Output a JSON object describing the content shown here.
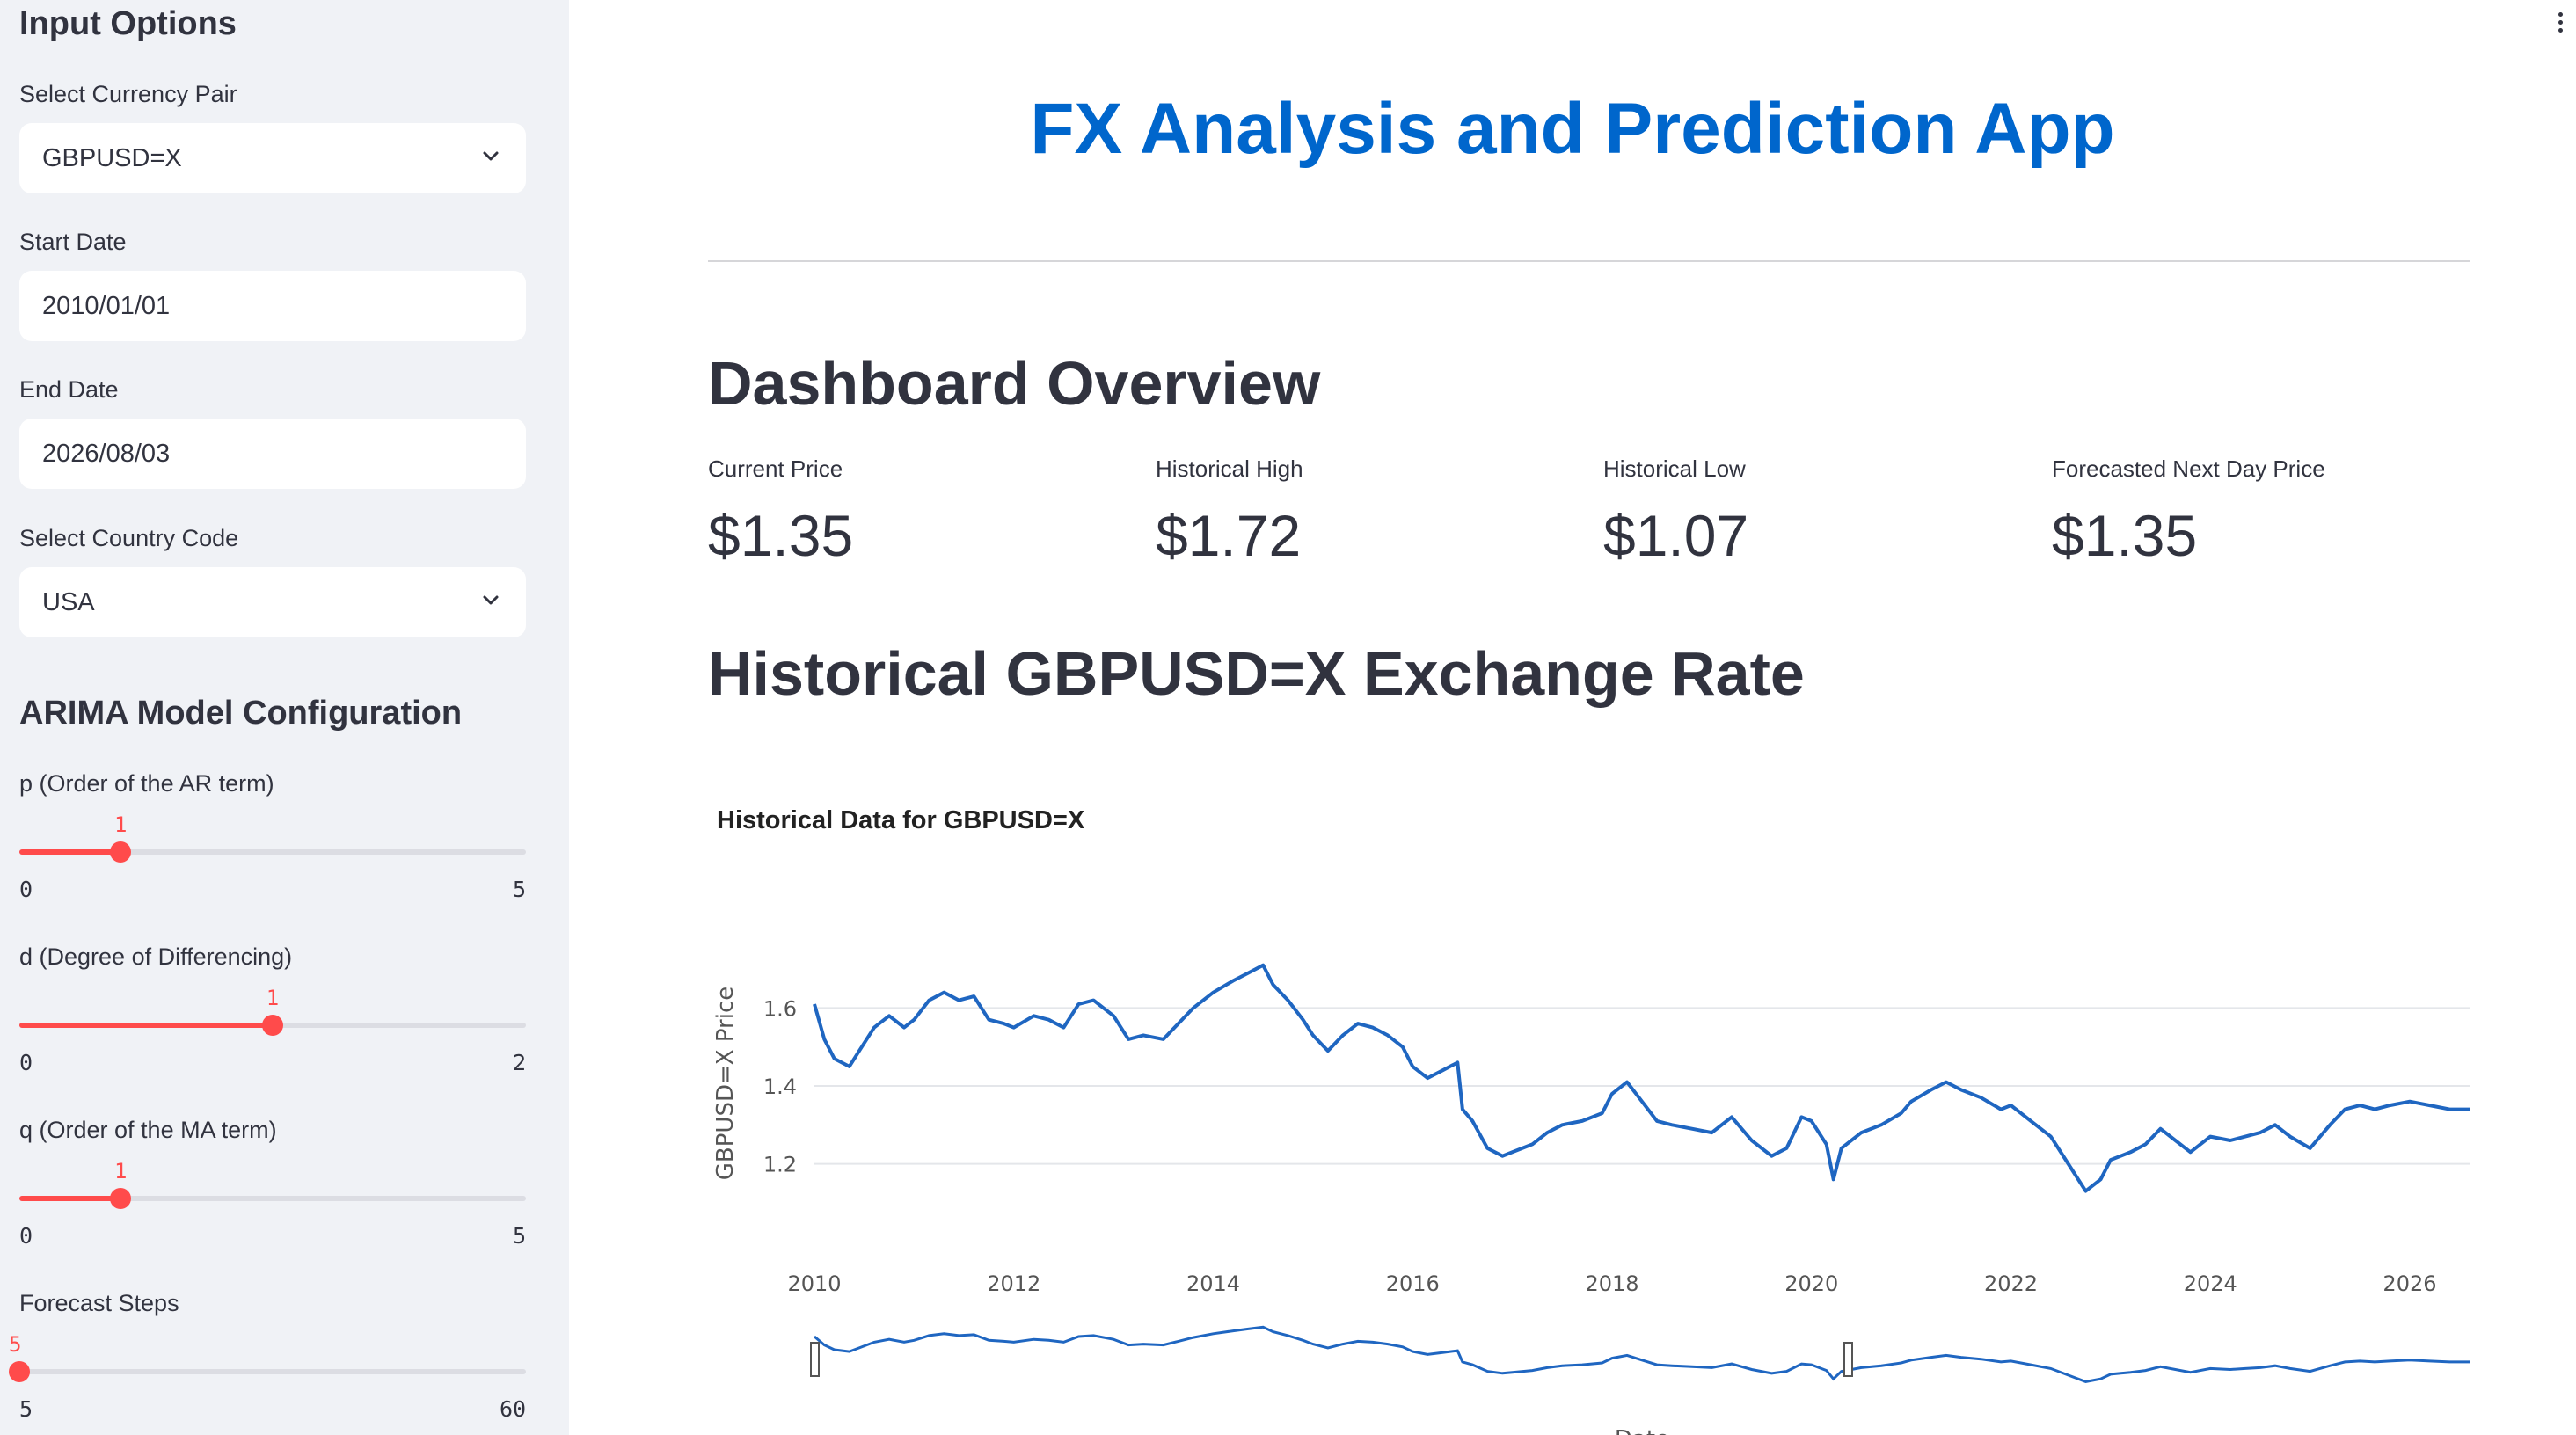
{
  "sidebar": {
    "heading": "Input Options",
    "currency": {
      "label": "Select Currency Pair",
      "value": "GBPUSD=X"
    },
    "start_date": {
      "label": "Start Date",
      "value": "2010/01/01"
    },
    "end_date": {
      "label": "End Date",
      "value": "2026/08/03"
    },
    "country": {
      "label": "Select Country Code",
      "value": "USA"
    },
    "arima_heading": "ARIMA Model Configuration",
    "sliders": [
      {
        "label": "p (Order of the AR term)",
        "value": "1",
        "min": "0",
        "max": "5",
        "fraction": 0.2
      },
      {
        "label": "d (Degree of Differencing)",
        "value": "1",
        "min": "0",
        "max": "2",
        "fraction": 0.5
      },
      {
        "label": "q (Order of the MA term)",
        "value": "1",
        "min": "0",
        "max": "5",
        "fraction": 0.2
      },
      {
        "label": "Forecast Steps",
        "value": "5",
        "min": "5",
        "max": "60",
        "fraction": 0.0
      }
    ]
  },
  "main": {
    "title": "FX Analysis and Prediction App",
    "overview_heading": "Dashboard Overview",
    "metrics": [
      {
        "label": "Current Price",
        "value": "$1.35"
      },
      {
        "label": "Historical High",
        "value": "$1.72"
      },
      {
        "label": "Historical Low",
        "value": "$1.07"
      },
      {
        "label": "Forecasted Next Day Price",
        "value": "$1.35"
      }
    ],
    "history_heading": "Historical GBPUSD=X Exchange Rate"
  },
  "chart_data": {
    "type": "line",
    "title": "Historical Data for GBPUSD=X",
    "xlabel": "Date",
    "ylabel": "GBPUSD=X Price",
    "x_ticks": [
      "2010",
      "2012",
      "2014",
      "2016",
      "2018",
      "2020",
      "2022",
      "2024",
      "2026"
    ],
    "y_ticks": [
      "1.2",
      "1.4",
      "1.6"
    ],
    "xlim": [
      2010.0,
      2026.6
    ],
    "ylim": [
      1.05,
      1.75
    ],
    "grid": true,
    "line_color": "#1f66c1",
    "range_slider": true,
    "series": [
      {
        "x": [
          2010.0,
          2010.1,
          2010.2,
          2010.35,
          2010.45,
          2010.6,
          2010.75,
          2010.9,
          2011.0,
          2011.15,
          2011.3,
          2011.45,
          2011.6,
          2011.75,
          2011.9,
          2012.0,
          2012.2,
          2012.35,
          2012.5,
          2012.65,
          2012.8,
          2013.0,
          2013.15,
          2013.3,
          2013.5,
          2013.65,
          2013.8,
          2014.0,
          2014.2,
          2014.35,
          2014.5,
          2014.6,
          2014.75,
          2014.9,
          2015.0,
          2015.15,
          2015.3,
          2015.45,
          2015.6,
          2015.75,
          2015.9,
          2016.0,
          2016.15,
          2016.3,
          2016.45,
          2016.5,
          2016.6,
          2016.75,
          2016.9,
          2017.0,
          2017.2,
          2017.35,
          2017.5,
          2017.7,
          2017.9,
          2018.0,
          2018.15,
          2018.3,
          2018.45,
          2018.6,
          2018.8,
          2019.0,
          2019.2,
          2019.4,
          2019.6,
          2019.75,
          2019.9,
          2020.0,
          2020.15,
          2020.22,
          2020.3,
          2020.5,
          2020.7,
          2020.9,
          2021.0,
          2021.2,
          2021.35,
          2021.5,
          2021.7,
          2021.9,
          2022.0,
          2022.2,
          2022.4,
          2022.6,
          2022.75,
          2022.9,
          2023.0,
          2023.2,
          2023.35,
          2023.5,
          2023.65,
          2023.8,
          2024.0,
          2024.2,
          2024.35,
          2024.5,
          2024.65,
          2024.8,
          2025.0,
          2025.2,
          2025.35,
          2025.5,
          2025.65,
          2025.8,
          2026.0,
          2026.2,
          2026.4,
          2026.6
        ],
        "y": [
          1.61,
          1.52,
          1.47,
          1.45,
          1.49,
          1.55,
          1.58,
          1.55,
          1.57,
          1.62,
          1.64,
          1.62,
          1.63,
          1.57,
          1.56,
          1.55,
          1.58,
          1.57,
          1.55,
          1.61,
          1.62,
          1.58,
          1.52,
          1.53,
          1.52,
          1.56,
          1.6,
          1.64,
          1.67,
          1.69,
          1.71,
          1.66,
          1.62,
          1.57,
          1.53,
          1.49,
          1.53,
          1.56,
          1.55,
          1.53,
          1.5,
          1.45,
          1.42,
          1.44,
          1.46,
          1.34,
          1.31,
          1.24,
          1.22,
          1.23,
          1.25,
          1.28,
          1.3,
          1.31,
          1.33,
          1.38,
          1.41,
          1.36,
          1.31,
          1.3,
          1.29,
          1.28,
          1.32,
          1.26,
          1.22,
          1.24,
          1.32,
          1.31,
          1.25,
          1.16,
          1.24,
          1.28,
          1.3,
          1.33,
          1.36,
          1.39,
          1.41,
          1.39,
          1.37,
          1.34,
          1.35,
          1.31,
          1.27,
          1.19,
          1.13,
          1.16,
          1.21,
          1.23,
          1.25,
          1.29,
          1.26,
          1.23,
          1.27,
          1.26,
          1.27,
          1.28,
          1.3,
          1.27,
          1.24,
          1.3,
          1.34,
          1.35,
          1.34,
          1.35,
          1.36,
          1.35,
          1.34,
          1.34
        ]
      }
    ]
  }
}
